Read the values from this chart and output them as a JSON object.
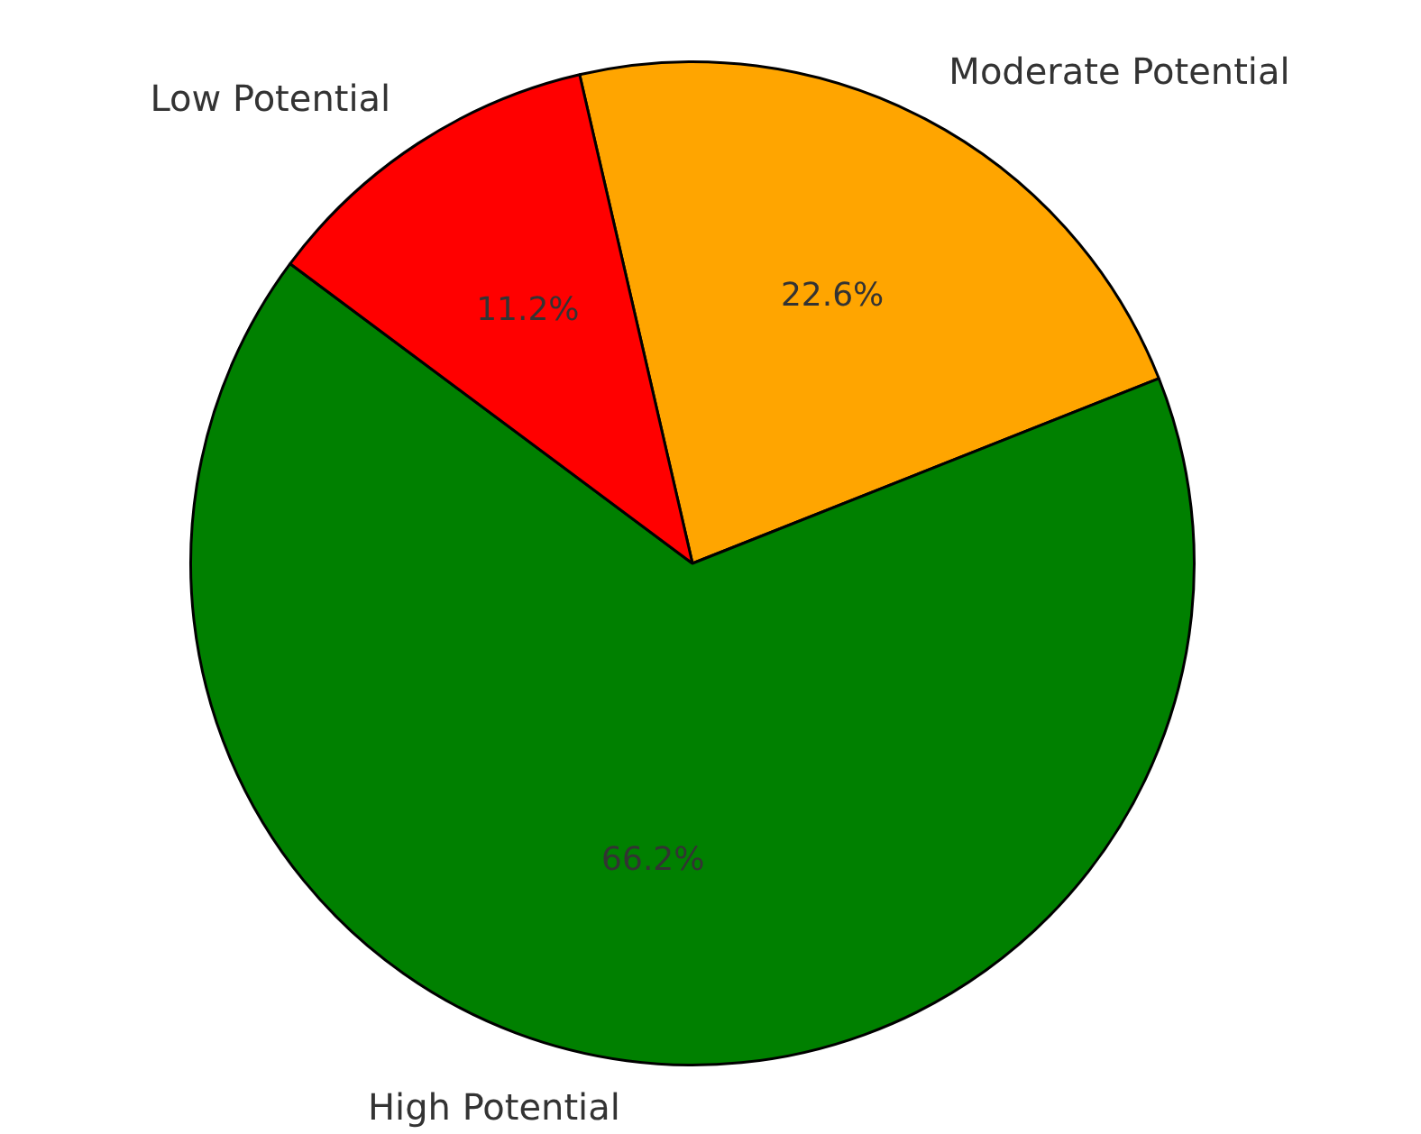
{
  "chart_data": {
    "type": "pie",
    "categories": [
      "Moderate Potential",
      "High Potential",
      "Low Potential"
    ],
    "values": [
      22.6,
      66.2,
      11.2
    ],
    "colors": [
      "#ffa500",
      "#008000",
      "#ff0000"
    ],
    "value_labels": [
      "22.6%",
      "66.2%",
      "11.2%"
    ],
    "legend": false
  }
}
